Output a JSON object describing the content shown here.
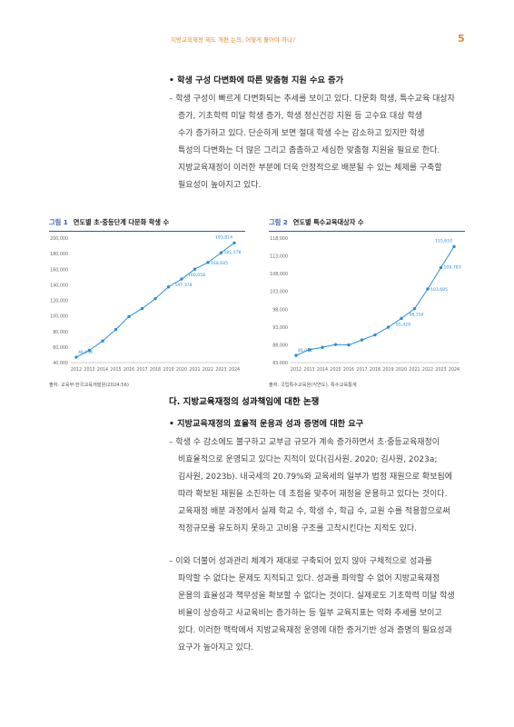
{
  "header": {
    "running_title": "지방교육재정 제도 개편 논의, 어떻게 풀어야 하나?",
    "page_number": "5"
  },
  "section1": {
    "bullet": "• 학생 구성 다변화에 따른 맞춤형 지원 수요 증가",
    "lines": [
      "– 학생 구성이 빠르게 다변화되는 추세를 보이고 있다. 다문화 학생, 특수교육 대상자",
      "증가, 기초학력 미달 학생 증가, 학생 정신건강 지원 등 고수요 대상 학생",
      "수가 증가하고 있다. 단순하게 보면 절대 학생 수는 감소하고 있지만 학생",
      "특성의 다변화는 더 많은 그리고 촘촘하고 세심한 맞춤형 지원을 필요로 한다.",
      "지방교육재정이 이러한 부분에 더욱 안정적으로 배분될 수 있는 체제를 구축할",
      "필요성이 높아지고 있다."
    ]
  },
  "figure1": {
    "number": "그림 1",
    "title": "연도별 초·중등단계 다문화 학생 수",
    "source": "출처: 교육부·한국교육개발원(2024:56)"
  },
  "figure2": {
    "number": "그림 2",
    "title": "연도별 특수교육대상자 수",
    "source": "출처: 국립특수교육원(각연도). 특수교육통계"
  },
  "chart_data": [
    {
      "type": "line",
      "title": "연도별 초·중등단계 다문화 학생 수",
      "x": [
        "2012",
        "2013",
        "2014",
        "2015",
        "2016",
        "2017",
        "2018",
        "2019",
        "2020",
        "2021",
        "2022",
        "2023",
        "2024"
      ],
      "series": [
        {
          "values": [
            46954,
            55780,
            67806,
            82536,
            99186,
            109387,
            122212,
            137225,
            147378,
            160058,
            168645,
            181178,
            193814
          ]
        }
      ],
      "point_labels": {
        "0": "46,954",
        "8": "147,378",
        "9": "160,058",
        "10": "168,645",
        "11": "181,178",
        "12": "193,814"
      },
      "yticks": [
        "40,000",
        "60,000",
        "80,000",
        "100,000",
        "120,000",
        "140,000",
        "160,000",
        "180,000",
        "200,000"
      ],
      "ylim": [
        40000,
        200000
      ],
      "color": "#2a8fd4",
      "grid": false
    },
    {
      "type": "line",
      "title": "연도별 특수교육대상자 수",
      "x": [
        "2012",
        "2013",
        "2014",
        "2015",
        "2016",
        "2017",
        "2018",
        "2019",
        "2020",
        "2021",
        "2022",
        "2023",
        "2024"
      ],
      "series": [
        {
          "values": [
            85012,
            86633,
            87278,
            88067,
            87950,
            89353,
            90780,
            92958,
            95420,
            98154,
            103695,
            109703,
            115610
          ]
        }
      ],
      "point_labels": {
        "0": "85,012",
        "8": "95,420",
        "9": "98,154",
        "10": "103,695",
        "11": "109,703",
        "12": "115,610"
      },
      "yticks": [
        "83,000",
        "88,000",
        "93,000",
        "98,000",
        "103,000",
        "108,000",
        "113,000",
        "118,000"
      ],
      "ylim": [
        83000,
        118000
      ],
      "color": "#2a8fd4",
      "grid": false
    }
  ],
  "section2": {
    "heading": "다. 지방교육재정의 성과책임에 대한 논쟁",
    "bullet": "• 지방교육재정의 효율적 운용과 성과 증명에 대한 요구",
    "para1": [
      "– 학생 수 감소에도 불구하고 교부금 규모가 계속 증가하면서 초·중등교육재정이",
      "비효율적으로 운영되고 있다는 지적이 있다(김사원, 2020; 김사원, 2023a;",
      "김사원, 2023b). 내국세의 20.79%와 교육세의 일부가 법정 재원으로 확보됨에",
      "따라 확보된 재원을 소진하는 데 초점을 맞추어 재정을 운용하고 있다는 것이다.",
      "교육재정 배분 과정에서 실제 학교 수, 학생 수, 학급 수, 교원 수를 적용함으로써",
      "적정규모를 유도하지 못하고 고비용 구조를 고착시킨다는 지적도 있다."
    ],
    "para2": [
      "– 이와 더불어 성과관리 체계가 제대로 구축되어 있지 않아 구체적으로 성과를",
      "파악할 수 없다는 문제도 지적되고 있다. 성과를 파악할 수 없어 지방교육재정",
      "운용의 효율성과 책무성을 확보할 수 없다는 것이다. 실제로도 기초학력 미달 학생",
      "비율이 상승하고 사교육비는 증가하는 등 일부 교육지표는 악화 추세를 보이고",
      "있다. 이러한 맥락에서 지방교육재정 운영에 대한 증거기반 성과 증명의 필요성과",
      "요구가 높아지고 있다."
    ]
  }
}
